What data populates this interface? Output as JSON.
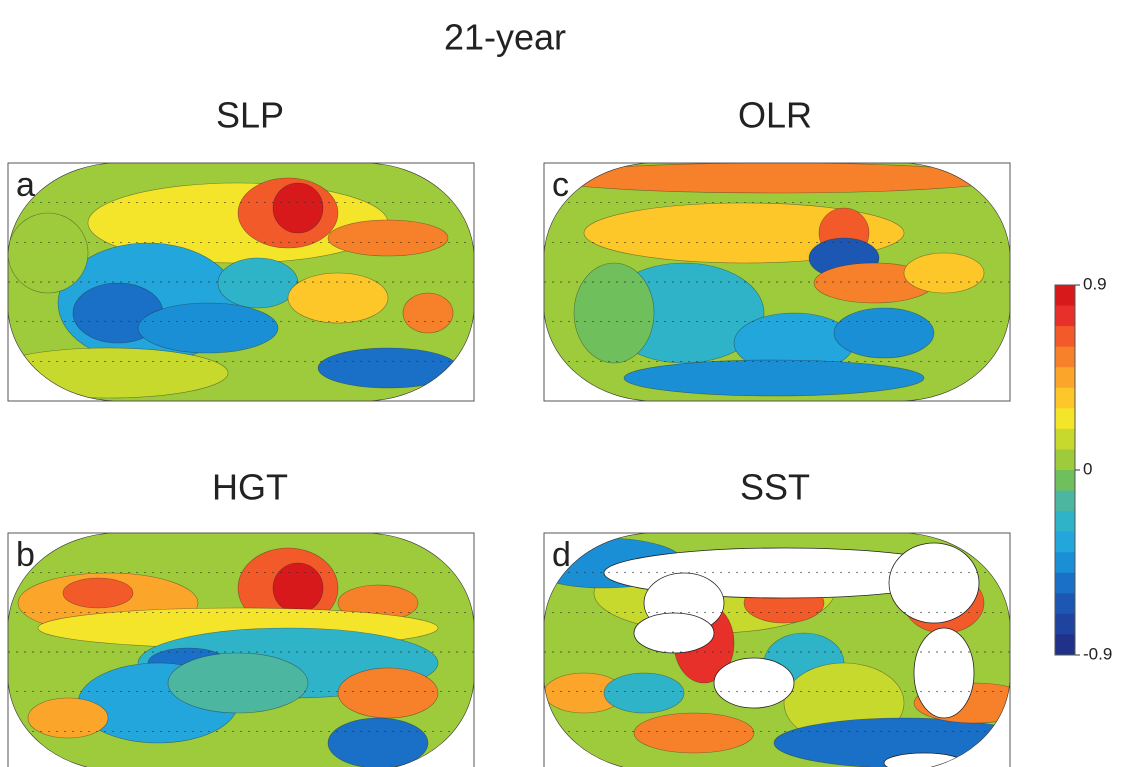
{
  "title": "21-year",
  "panels": [
    {
      "title": "SLP",
      "label": "a"
    },
    {
      "title": "OLR",
      "label": "c"
    },
    {
      "title": "HGT",
      "label": "b"
    },
    {
      "title": "SST",
      "label": "d"
    }
  ],
  "colorbar": {
    "colors": [
      "#d7191c",
      "#e8302a",
      "#f25a2a",
      "#f7812a",
      "#fba52a",
      "#fdc72a",
      "#f5e52a",
      "#c8d92e",
      "#9dcb3c",
      "#6fbf5c",
      "#4db6a0",
      "#2fb3c8",
      "#22a6dc",
      "#1a8fd6",
      "#1a70c6",
      "#1c57b4",
      "#1f449f",
      "#1f3188"
    ],
    "lim": [
      -0.9,
      0.9
    ],
    "ticks": [
      0.9,
      0,
      -0.9
    ]
  }
}
